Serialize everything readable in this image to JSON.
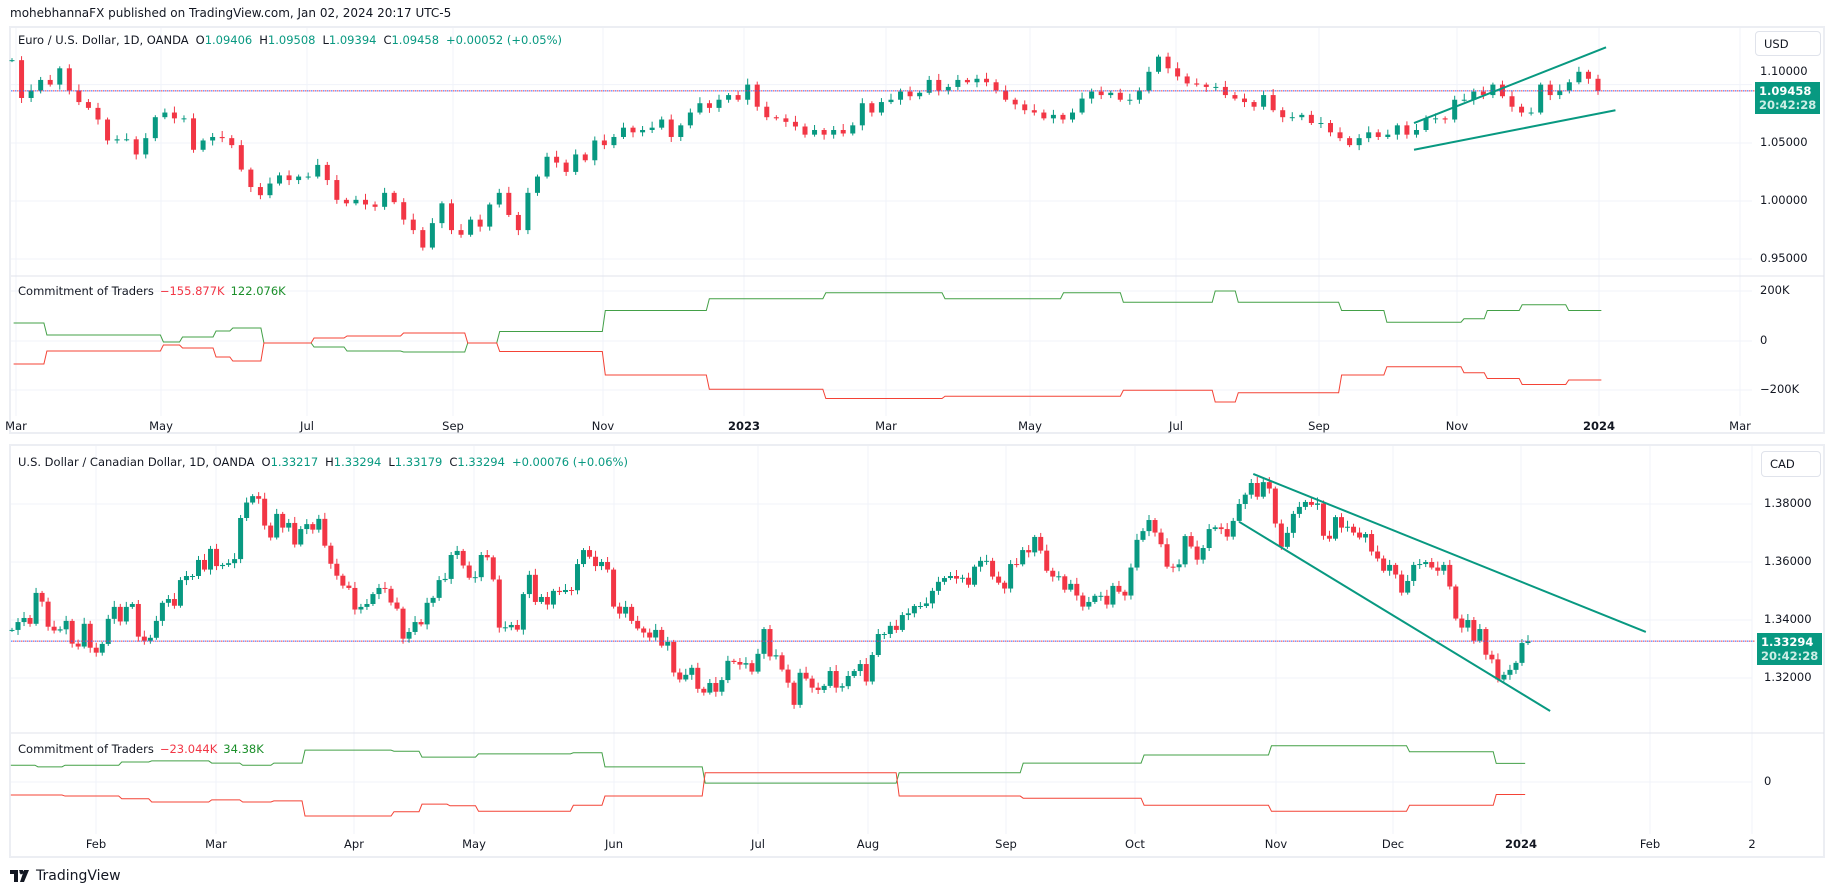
{
  "header": {
    "text": "mohebhannaFX published on TradingView.com, Jan 02, 2024 20:17 UTC-5"
  },
  "colors": {
    "up": "#089981",
    "down": "#f23645",
    "trendline": "#089981",
    "cot_long": "#43a047",
    "cot_short": "#f44336",
    "price_line_blue": "#2962ff"
  },
  "footer": {
    "logo_text": "TradingView",
    "logo_icon": "tradingview-logo-icon"
  },
  "chart_data": [
    {
      "type": "candlestick",
      "title": "Euro / U.S. Dollar, 1D, OANDA",
      "legend": {
        "symbol": "Euro / U.S. Dollar, 1D, OANDA",
        "o_label": "O",
        "o": "1.09406",
        "h_label": "H",
        "h": "1.09508",
        "l_label": "L",
        "l": "1.09394",
        "c_label": "C",
        "c": "1.09458",
        "change": "+0.00052 (+0.05%)"
      },
      "currency": "USD",
      "last_price": 1.09458,
      "last_price_label": "1.09458",
      "countdown": "20:42:28",
      "y_ticks": [
        "1.10000",
        "1.05000",
        "1.00000",
        "0.95000"
      ],
      "ylim": [
        0.94,
        1.14
      ],
      "x_ticks": [
        "Mar",
        "May",
        "Jul",
        "Sep",
        "Nov",
        "2023",
        "Mar",
        "May",
        "Jul",
        "Sep",
        "Nov",
        "2024",
        "Mar"
      ],
      "closes": [
        1.121,
        1.0885,
        1.095,
        1.104,
        1.1,
        1.114,
        1.095,
        1.085,
        1.08,
        1.07,
        1.052,
        1.053,
        1.053,
        1.04,
        1.054,
        1.072,
        1.076,
        1.071,
        1.071,
        1.044,
        1.052,
        1.055,
        1.054,
        1.048,
        1.027,
        1.012,
        1.005,
        1.015,
        1.022,
        1.018,
        1.021,
        1.021,
        1.031,
        1.018,
        1.001,
        0.998,
        1.001,
        0.997,
        0.995,
        1.007,
        0.999,
        0.984,
        0.975,
        0.96,
        0.981,
        0.998,
        0.975,
        0.971,
        0.984,
        0.978,
        0.997,
        1.007,
        0.988,
        0.975,
        1.007,
        1.021,
        1.038,
        1.033,
        1.025,
        1.04,
        1.035,
        1.052,
        1.048,
        1.055,
        1.063,
        1.059,
        1.061,
        1.063,
        1.07,
        1.055,
        1.065,
        1.076,
        1.084,
        1.08,
        1.087,
        1.091,
        1.087,
        1.1,
        1.081,
        1.072,
        1.071,
        1.068,
        1.064,
        1.057,
        1.061,
        1.057,
        1.061,
        1.058,
        1.065,
        1.084,
        1.076,
        1.085,
        1.087,
        1.094,
        1.09,
        1.093,
        1.104,
        1.095,
        1.098,
        1.104,
        1.102,
        1.105,
        1.102,
        1.095,
        1.087,
        1.083,
        1.078,
        1.076,
        1.071,
        1.074,
        1.07,
        1.076,
        1.088,
        1.094,
        1.091,
        1.093,
        1.087,
        1.087,
        1.095,
        1.111,
        1.124,
        1.114,
        1.107,
        1.101,
        1.1,
        1.098,
        1.098,
        1.091,
        1.088,
        1.085,
        1.081,
        1.091,
        1.078,
        1.072,
        1.072,
        1.074,
        1.067,
        1.067,
        1.059,
        1.054,
        1.048,
        1.054,
        1.059,
        1.055,
        1.057,
        1.065,
        1.057,
        1.061,
        1.071,
        1.071,
        1.07,
        1.087,
        1.087,
        1.094,
        1.091,
        1.1,
        1.09,
        1.081,
        1.076,
        1.076,
        1.1,
        1.091,
        1.095,
        1.102,
        1.111,
        1.105,
        1.09458
      ],
      "trendlines": [
        {
          "from": [
            "2023-10-13",
            1.067
          ],
          "to": [
            "2024-01-04",
            1.132
          ]
        },
        {
          "from": [
            "2023-10-13",
            1.044
          ],
          "to": [
            "2024-01-08",
            1.078
          ]
        }
      ],
      "indicator": {
        "name": "Commitment of Traders",
        "short_value": "−155.877K",
        "long_value": "122.076K",
        "y_ticks": [
          "200K",
          "0",
          "−200K"
        ],
        "unit": "K",
        "points": [
          [
            "2022-02-28",
            72,
            -92
          ],
          [
            "2022-03-14",
            24,
            -40
          ],
          [
            "2022-05-02",
            -4,
            -16
          ],
          [
            "2022-05-10",
            16,
            -28
          ],
          [
            "2022-05-24",
            40,
            -64
          ],
          [
            "2022-05-31",
            52,
            -80
          ],
          [
            "2022-06-13",
            -8,
            -8
          ],
          [
            "2022-07-04",
            -24,
            12
          ],
          [
            "2022-07-18",
            -40,
            20
          ],
          [
            "2022-08-11",
            -44,
            32
          ],
          [
            "2022-09-07",
            -8,
            -8
          ],
          [
            "2022-09-20",
            38,
            -42
          ],
          [
            "2022-11-02",
            122,
            -136
          ],
          [
            "2022-12-17",
            169,
            -193
          ],
          [
            "2023-02-04",
            193,
            -230
          ],
          [
            "2023-03-26",
            169,
            -221
          ],
          [
            "2023-05-15",
            193,
            -221
          ],
          [
            "2023-06-09",
            155,
            -197
          ],
          [
            "2023-07-18",
            200,
            -244
          ],
          [
            "2023-07-28",
            155,
            -207
          ],
          [
            "2023-09-11",
            122,
            -136
          ],
          [
            "2023-10-01",
            75,
            -103
          ],
          [
            "2023-11-04",
            89,
            -127
          ],
          [
            "2023-11-14",
            122,
            -150
          ],
          [
            "2023-11-29",
            145,
            -174
          ],
          [
            "2023-12-19",
            122.076,
            -155.877
          ],
          [
            "2024-01-02",
            122.076,
            -155.877
          ]
        ]
      }
    },
    {
      "type": "candlestick",
      "title": "U.S. Dollar / Canadian Dollar, 1D, OANDA",
      "legend": {
        "symbol": "U.S. Dollar / Canadian Dollar, 1D, OANDA",
        "o_label": "O",
        "o": "1.33217",
        "h_label": "H",
        "h": "1.33294",
        "l_label": "L",
        "l": "1.33179",
        "c_label": "C",
        "c": "1.33294",
        "change": "+0.00076 (+0.06%)"
      },
      "currency": "CAD",
      "last_price": 1.33294,
      "last_price_label": "1.33294",
      "countdown": "20:42:28",
      "y_ticks": [
        "1.38000",
        "1.36000",
        "1.34000",
        "1.32000"
      ],
      "ylim": [
        1.305,
        1.392
      ],
      "x_ticks": [
        "Feb",
        "Mar",
        "Apr",
        "May",
        "Jun",
        "Jul",
        "Aug",
        "Sep",
        "Oct",
        "Nov",
        "Dec",
        "2024",
        "Feb",
        "2"
      ],
      "closes": [
        1.3368,
        1.3395,
        1.3409,
        1.3389,
        1.3495,
        1.3465,
        1.3379,
        1.3366,
        1.337,
        1.3399,
        1.3321,
        1.3311,
        1.3389,
        1.3307,
        1.329,
        1.332,
        1.3406,
        1.3447,
        1.3397,
        1.3447,
        1.3457,
        1.3345,
        1.3331,
        1.3341,
        1.3399,
        1.3461,
        1.3474,
        1.3451,
        1.3539,
        1.3553,
        1.3553,
        1.3608,
        1.3575,
        1.3646,
        1.3587,
        1.3591,
        1.3597,
        1.3611,
        1.3752,
        1.3805,
        1.3827,
        1.3818,
        1.3726,
        1.3685,
        1.3766,
        1.3719,
        1.3735,
        1.3661,
        1.3714,
        1.3731,
        1.3712,
        1.3749,
        1.3657,
        1.3595,
        1.3554,
        1.352,
        1.3512,
        1.3438,
        1.3447,
        1.3457,
        1.3491,
        1.3512,
        1.3509,
        1.3462,
        1.3441,
        1.3338,
        1.3361,
        1.3395,
        1.3387,
        1.3461,
        1.3478,
        1.3539,
        1.3543,
        1.3625,
        1.3639,
        1.3589,
        1.3547,
        1.3549,
        1.3625,
        1.3617,
        1.3541,
        1.3376,
        1.3377,
        1.3385,
        1.3369,
        1.3491,
        1.3557,
        1.3464,
        1.3481,
        1.3455,
        1.3502,
        1.3498,
        1.3505,
        1.3504,
        1.3594,
        1.3642,
        1.3619,
        1.3587,
        1.3601,
        1.3575,
        1.3448,
        1.3424,
        1.3447,
        1.3399,
        1.3373,
        1.3359,
        1.3342,
        1.3368,
        1.3314,
        1.3327,
        1.3222,
        1.3198,
        1.3214,
        1.3238,
        1.3166,
        1.3153,
        1.3186,
        1.3156,
        1.3196,
        1.3262,
        1.3258,
        1.3249,
        1.3254,
        1.3225,
        1.3286,
        1.3371,
        1.3277,
        1.3281,
        1.3232,
        1.3187,
        1.3111,
        1.3221,
        1.3201,
        1.317,
        1.3162,
        1.3176,
        1.3227,
        1.317,
        1.3175,
        1.321,
        1.3227,
        1.3251,
        1.3191,
        1.3282,
        1.3354,
        1.3354,
        1.3382,
        1.3368,
        1.3419,
        1.3425,
        1.345,
        1.345,
        1.3459,
        1.3502,
        1.3533,
        1.3546,
        1.3553,
        1.3544,
        1.3547,
        1.3523,
        1.3585,
        1.3605,
        1.3605,
        1.3551,
        1.353,
        1.351,
        1.3594,
        1.3593,
        1.3642,
        1.3634,
        1.3687,
        1.364,
        1.3571,
        1.3551,
        1.3552,
        1.3506,
        1.3526,
        1.3486,
        1.3448,
        1.3464,
        1.3485,
        1.3485,
        1.3455,
        1.3519,
        1.3499,
        1.3486,
        1.3582,
        1.3677,
        1.3707,
        1.3745,
        1.3702,
        1.3662,
        1.3585,
        1.3583,
        1.3593,
        1.369,
        1.3654,
        1.3609,
        1.3649,
        1.3714,
        1.372,
        1.3714,
        1.3688,
        1.3742,
        1.38,
        1.3832,
        1.3872,
        1.3825,
        1.3875,
        1.3853,
        1.3733,
        1.3653,
        1.3701,
        1.3766,
        1.379,
        1.3807,
        1.3797,
        1.3802,
        1.3691,
        1.3681,
        1.3755,
        1.3719,
        1.3722,
        1.3702,
        1.3685,
        1.3697,
        1.3637,
        1.3613,
        1.3571,
        1.3591,
        1.3558,
        1.3496,
        1.3536,
        1.3591,
        1.3594,
        1.3601,
        1.3582,
        1.3571,
        1.3591,
        1.3517,
        1.3407,
        1.3376,
        1.3402,
        1.3331,
        1.3371,
        1.3283,
        1.3267,
        1.3198,
        1.3214,
        1.3231,
        1.3255,
        1.3323,
        1.33294
      ],
      "trendlines": [
        {
          "from": [
            "2023-10-27",
            1.3903
          ],
          "to": [
            "2024-01-31",
            1.3361
          ]
        },
        {
          "from": [
            "2023-10-24",
            1.3738
          ],
          "to": [
            "2024-01-08",
            1.309
          ]
        }
      ],
      "indicator": {
        "name": "Commitment of Traders",
        "short_value": "−23.044K",
        "long_value": "34.38K",
        "y_ticks": [
          "0"
        ],
        "unit": "K",
        "points": [
          [
            "2023-01-10",
            31,
            -24
          ],
          [
            "2023-01-17",
            28,
            -24
          ],
          [
            "2023-01-24",
            31,
            -26
          ],
          [
            "2023-02-07",
            37,
            -31
          ],
          [
            "2023-02-14",
            39,
            -37
          ],
          [
            "2023-02-28",
            35,
            -33
          ],
          [
            "2023-03-07",
            31,
            -37
          ],
          [
            "2023-03-14",
            35,
            -35
          ],
          [
            "2023-03-21",
            59,
            -63
          ],
          [
            "2023-04-11",
            57,
            -55
          ],
          [
            "2023-04-18",
            46,
            -41
          ],
          [
            "2023-04-25",
            46,
            -44
          ],
          [
            "2023-05-02",
            52,
            -54
          ],
          [
            "2023-05-23",
            54,
            -43
          ],
          [
            "2023-05-30",
            28,
            -26
          ],
          [
            "2023-06-20",
            -2,
            17
          ],
          [
            "2023-08-08",
            17,
            -26
          ],
          [
            "2023-09-05",
            35,
            -30
          ],
          [
            "2023-10-03",
            50,
            -43
          ],
          [
            "2023-10-31",
            67,
            -54
          ],
          [
            "2023-12-05",
            56,
            -43
          ],
          [
            "2023-12-26",
            34.38,
            -23.044
          ],
          [
            "2024-01-02",
            34.38,
            -23.044
          ]
        ]
      }
    }
  ]
}
